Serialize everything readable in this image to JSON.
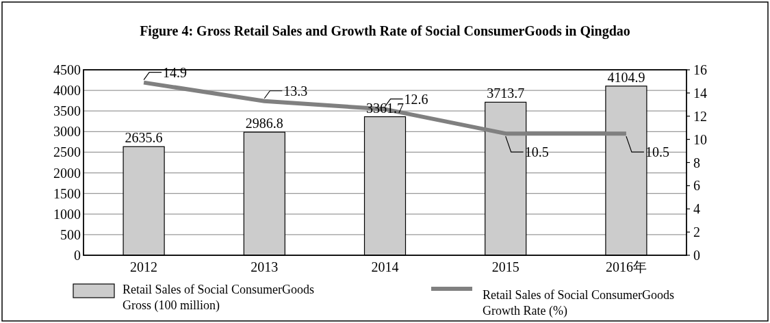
{
  "chart_data": {
    "type": "bar",
    "title": "Figure 4: Gross Retail Sales and Growth Rate of Social ConsumerGoods in Qingdao",
    "categories": [
      "2012",
      "2013",
      "2014",
      "2015",
      "2016年"
    ],
    "series": [
      {
        "name": "Retail Sales of Social ConsumerGoods\nGross (100 million)",
        "color": "#cccccc",
        "values": [
          2635.6,
          2986.8,
          3361.7,
          3713.7,
          4104.9
        ]
      },
      {
        "name": "Retail Sales of Social ConsumerGoods\nGrowth Rate (%)",
        "type": "line",
        "axis": "y2",
        "color": "#808080",
        "values": [
          14.9,
          13.3,
          12.6,
          10.5,
          10.5
        ]
      }
    ],
    "ylim": [
      0,
      4500
    ],
    "yticks": [
      0,
      500,
      1000,
      1500,
      2000,
      2500,
      3000,
      3500,
      4000,
      4500
    ],
    "y2lim": [
      0,
      16
    ],
    "y2ticks": [
      0,
      2,
      4,
      6,
      8,
      10,
      12,
      14,
      16
    ],
    "grid": "y",
    "legend": "bottom",
    "data_labels": true
  }
}
